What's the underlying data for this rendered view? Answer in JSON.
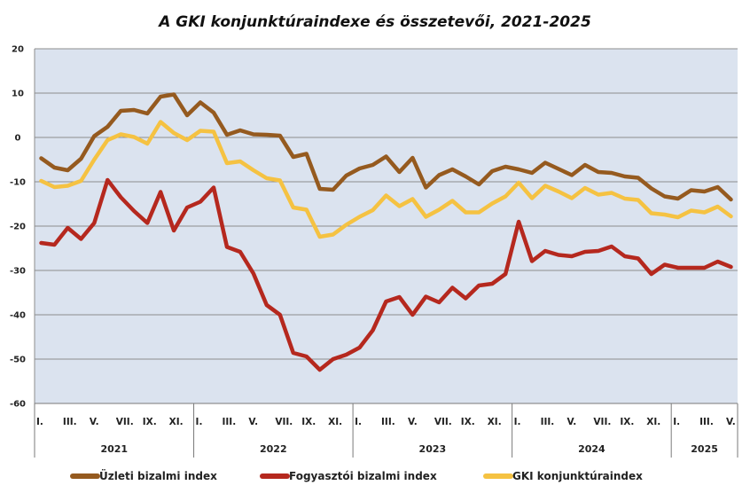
{
  "chart_data": {
    "type": "line",
    "title": "A GKI konjunktúraindexe és összetevői, 2021-2025",
    "xlabel": "",
    "ylabel": "",
    "ylim": [
      -60,
      20
    ],
    "yticks": [
      "20",
      "10",
      "0",
      "-10",
      "-20",
      "-30",
      "-40",
      "-50",
      "-60"
    ],
    "grid": true,
    "legend_position": "bottom",
    "month_labels": [
      "I.",
      "III.",
      "V.",
      "VII.",
      "IX.",
      "XI.",
      "I.",
      "III.",
      "V.",
      "VII.",
      "IX.",
      "XI.",
      "I.",
      "III.",
      "V.",
      "VII.",
      "IX.",
      "XI.",
      "I.",
      "III.",
      "V.",
      "VII.",
      "IX.",
      "XI.",
      "I.",
      "III.",
      "V."
    ],
    "years": [
      {
        "label": "2021",
        "months": 12
      },
      {
        "label": "2022",
        "months": 12
      },
      {
        "label": "2023",
        "months": 12
      },
      {
        "label": "2024",
        "months": 12
      },
      {
        "label": "2025",
        "months": 5
      }
    ],
    "series": [
      {
        "name": "Üzleti bizalmi index",
        "legend": "Üzleti bizalmi index",
        "color": "#955a1f",
        "values": [
          -4.7,
          -6.8,
          -7.4,
          -4.8,
          0.3,
          2.4,
          6.0,
          6.2,
          5.4,
          9.2,
          9.7,
          5.0,
          7.9,
          5.6,
          0.6,
          1.6,
          0.7,
          0.6,
          0.4,
          -4.4,
          -3.7,
          -11.6,
          -11.8,
          -8.6,
          -7.0,
          -6.2,
          -4.3,
          -7.8,
          -4.6,
          -11.3,
          -8.5,
          -7.2,
          -8.8,
          -10.6,
          -7.6,
          -6.6,
          -7.2,
          -8.0,
          -5.7,
          -7.1,
          -8.5,
          -6.2,
          -7.8,
          -8.0,
          -8.8,
          -9.1,
          -11.5,
          -13.3,
          -13.8,
          -11.9,
          -12.2,
          -11.2,
          -14.0
        ]
      },
      {
        "name": "Fogyasztói bizalmi index",
        "legend": "Fogyasztói bizalmi index",
        "color": "#b5281e",
        "values": [
          -23.8,
          -24.2,
          -20.4,
          -22.9,
          -19.3,
          -9.6,
          -13.5,
          -16.6,
          -19.3,
          -12.3,
          -21.0,
          -15.8,
          -14.5,
          -11.3,
          -24.7,
          -25.8,
          -30.7,
          -37.8,
          -40.0,
          -48.6,
          -49.4,
          -52.4,
          -50.0,
          -49.0,
          -47.4,
          -43.5,
          -37.0,
          -36.0,
          -40.0,
          -35.9,
          -37.2,
          -33.9,
          -36.3,
          -33.4,
          -33.0,
          -30.8,
          -19.0,
          -27.9,
          -25.6,
          -26.5,
          -26.8,
          -25.8,
          -25.6,
          -24.6,
          -26.8,
          -27.3,
          -30.8,
          -28.7,
          -29.4,
          -29.4,
          -29.4,
          -28.0,
          -29.2
        ]
      },
      {
        "name": "GKI konjunktúraindex",
        "legend": "GKI konjunktúraindex",
        "color": "#f5c242",
        "values": [
          -9.8,
          -11.2,
          -10.9,
          -9.8,
          -5.0,
          -0.6,
          0.7,
          0.1,
          -1.4,
          3.5,
          1.0,
          -0.6,
          1.5,
          1.3,
          -5.8,
          -5.4,
          -7.4,
          -9.2,
          -9.7,
          -15.8,
          -16.3,
          -22.4,
          -21.9,
          -19.7,
          -17.9,
          -16.4,
          -13.1,
          -15.5,
          -13.9,
          -17.9,
          -16.3,
          -14.3,
          -16.9,
          -16.9,
          -14.9,
          -13.3,
          -10.2,
          -13.7,
          -10.9,
          -12.2,
          -13.7,
          -11.4,
          -12.9,
          -12.5,
          -13.8,
          -14.1,
          -17.1,
          -17.4,
          -18.0,
          -16.5,
          -16.9,
          -15.6,
          -17.8
        ]
      }
    ]
  }
}
